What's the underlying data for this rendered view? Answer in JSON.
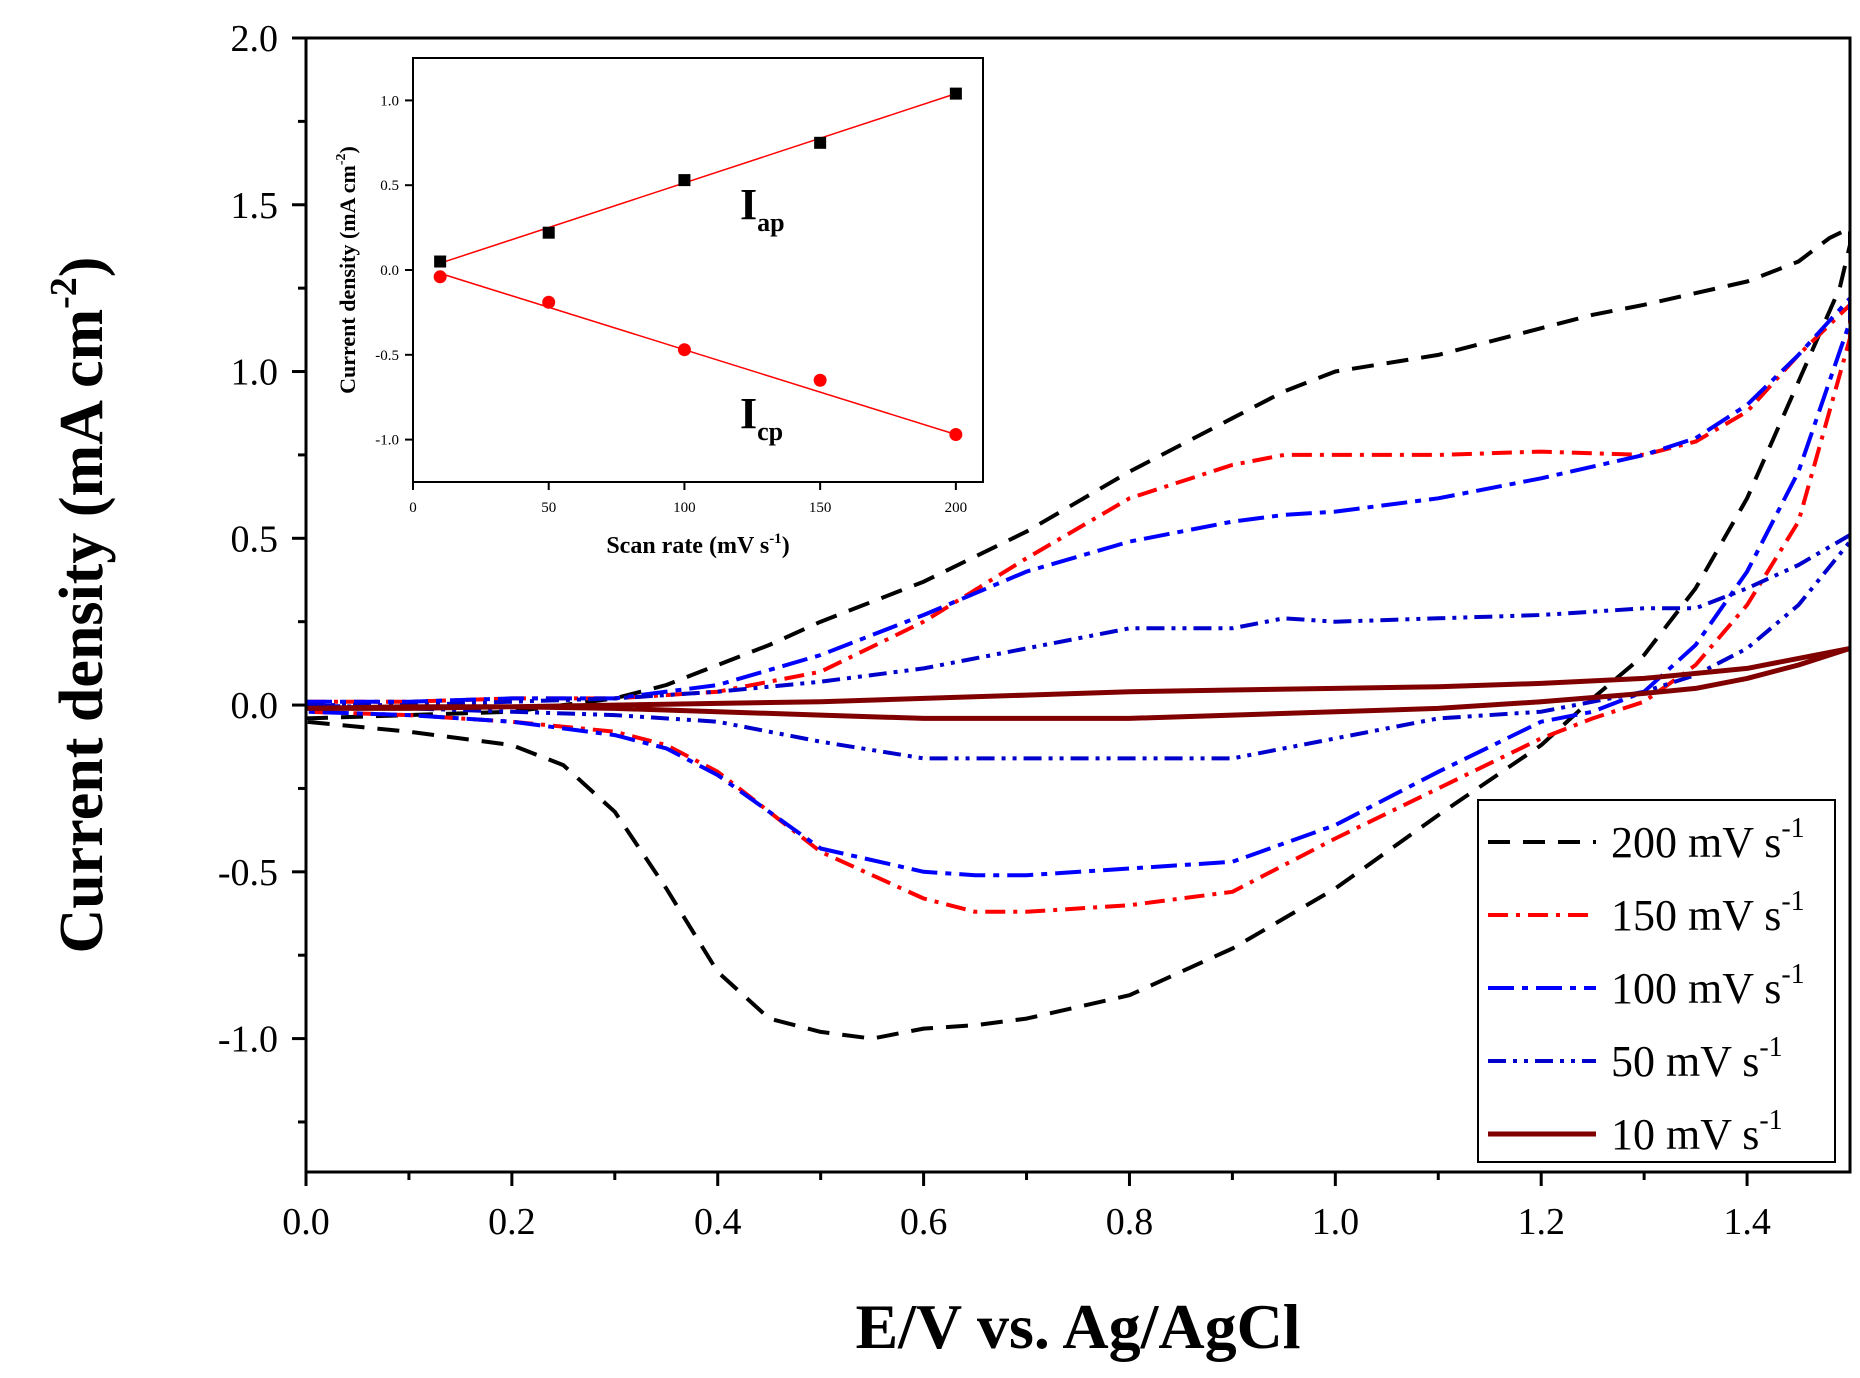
{
  "chart_data": [
    {
      "type": "line",
      "xlabel": "E/V vs. Ag/AgCl",
      "ylabel_main": "Current density (mA cm",
      "ylabel_sup": "-2",
      "ylabel_close": ")",
      "xlim": [
        0.0,
        1.5
      ],
      "ylim": [
        -1.4,
        2.0
      ],
      "xticks": [
        "0.0",
        "0.2",
        "0.4",
        "0.6",
        "0.8",
        "1.0",
        "1.2",
        "1.4"
      ],
      "yticks": [
        "-1.0",
        "-0.5",
        "0.0",
        "0.5",
        "1.0",
        "1.5",
        "2.0"
      ],
      "grid": false,
      "legend_position": "bottom-right",
      "legend": [
        {
          "text": "200 mV s",
          "sup": "-1"
        },
        {
          "text": "150 mV s",
          "sup": "-1"
        },
        {
          "text": "100 mV s",
          "sup": "-1"
        },
        {
          "text": "50 mV s",
          "sup": "-1"
        },
        {
          "text": "10 mV s",
          "sup": "-1"
        }
      ],
      "series": [
        {
          "name": "200 mV s-1",
          "color": "#000000",
          "dash": "dashed",
          "x": [
            0.0,
            0.1,
            0.2,
            0.3,
            0.35,
            0.4,
            0.45,
            0.5,
            0.55,
            0.6,
            0.7,
            0.8,
            0.9,
            0.95,
            1.0,
            1.1,
            1.2,
            1.25,
            1.3,
            1.4,
            1.45,
            1.48,
            1.5,
            1.5,
            1.49,
            1.4,
            1.35,
            1.3,
            1.25,
            1.2,
            1.1,
            1.0,
            0.9,
            0.8,
            0.7,
            0.65,
            0.6,
            0.55,
            0.5,
            0.45,
            0.4,
            0.35,
            0.3,
            0.25,
            0.2,
            0.15,
            0.1,
            0.0
          ],
          "y": [
            -0.04,
            -0.03,
            -0.02,
            0.02,
            0.06,
            0.12,
            0.18,
            0.25,
            0.31,
            0.37,
            0.52,
            0.7,
            0.86,
            0.94,
            1.0,
            1.05,
            1.13,
            1.17,
            1.2,
            1.27,
            1.33,
            1.4,
            1.43,
            1.38,
            1.25,
            0.62,
            0.35,
            0.15,
            0.02,
            -0.12,
            -0.33,
            -0.55,
            -0.73,
            -0.87,
            -0.94,
            -0.96,
            -0.97,
            -1.0,
            -0.98,
            -0.94,
            -0.8,
            -0.55,
            -0.32,
            -0.18,
            -0.12,
            -0.1,
            -0.08,
            -0.05
          ]
        },
        {
          "name": "150 mV s-1",
          "color": "#ff0000",
          "dash": "dashdot",
          "x": [
            0.0,
            0.1,
            0.2,
            0.3,
            0.4,
            0.5,
            0.6,
            0.7,
            0.8,
            0.9,
            0.95,
            1.0,
            1.1,
            1.2,
            1.3,
            1.35,
            1.4,
            1.45,
            1.5,
            1.5,
            1.45,
            1.4,
            1.35,
            1.3,
            1.25,
            1.2,
            1.1,
            1.0,
            0.9,
            0.8,
            0.7,
            0.65,
            0.6,
            0.5,
            0.45,
            0.4,
            0.35,
            0.3,
            0.2,
            0.1,
            0.0
          ],
          "y": [
            0.01,
            0.01,
            0.02,
            0.02,
            0.04,
            0.1,
            0.25,
            0.44,
            0.62,
            0.72,
            0.75,
            0.75,
            0.75,
            0.76,
            0.75,
            0.79,
            0.88,
            1.05,
            1.2,
            1.1,
            0.55,
            0.3,
            0.12,
            0.01,
            -0.04,
            -0.1,
            -0.25,
            -0.4,
            -0.56,
            -0.6,
            -0.62,
            -0.62,
            -0.58,
            -0.44,
            -0.32,
            -0.2,
            -0.12,
            -0.08,
            -0.05,
            -0.03,
            -0.02
          ]
        },
        {
          "name": "100 mV s-1",
          "color": "#0000ff",
          "dash": "dashdot-long",
          "x": [
            0.0,
            0.1,
            0.2,
            0.3,
            0.4,
            0.5,
            0.6,
            0.7,
            0.8,
            0.9,
            0.95,
            1.0,
            1.1,
            1.2,
            1.3,
            1.35,
            1.4,
            1.45,
            1.5,
            1.5,
            1.45,
            1.4,
            1.35,
            1.3,
            1.25,
            1.2,
            1.1,
            1.0,
            0.9,
            0.8,
            0.7,
            0.65,
            0.6,
            0.5,
            0.45,
            0.4,
            0.35,
            0.3,
            0.2,
            0.1,
            0.0
          ],
          "y": [
            0.01,
            0.01,
            0.02,
            0.02,
            0.06,
            0.15,
            0.27,
            0.4,
            0.49,
            0.55,
            0.57,
            0.58,
            0.62,
            0.68,
            0.75,
            0.8,
            0.9,
            1.05,
            1.22,
            1.15,
            0.7,
            0.4,
            0.18,
            0.04,
            -0.02,
            -0.05,
            -0.2,
            -0.36,
            -0.47,
            -0.49,
            -0.51,
            -0.51,
            -0.5,
            -0.43,
            -0.32,
            -0.21,
            -0.13,
            -0.09,
            -0.05,
            -0.03,
            -0.02
          ]
        },
        {
          "name": "50 mV s-1",
          "color": "#0000cc",
          "dash": "dashdotdot",
          "x": [
            0.0,
            0.1,
            0.2,
            0.3,
            0.4,
            0.5,
            0.6,
            0.7,
            0.8,
            0.9,
            0.95,
            1.0,
            1.1,
            1.2,
            1.3,
            1.35,
            1.4,
            1.45,
            1.5,
            1.5,
            1.45,
            1.4,
            1.35,
            1.3,
            1.25,
            1.2,
            1.1,
            1.0,
            0.9,
            0.8,
            0.7,
            0.6,
            0.5,
            0.4,
            0.3,
            0.2,
            0.1,
            0.0
          ],
          "y": [
            0.0,
            0.0,
            0.01,
            0.02,
            0.04,
            0.07,
            0.11,
            0.17,
            0.23,
            0.23,
            0.26,
            0.25,
            0.26,
            0.27,
            0.29,
            0.29,
            0.35,
            0.42,
            0.51,
            0.49,
            0.3,
            0.17,
            0.09,
            0.04,
            0.01,
            -0.02,
            -0.04,
            -0.1,
            -0.16,
            -0.16,
            -0.16,
            -0.16,
            -0.11,
            -0.05,
            -0.03,
            -0.02,
            -0.01,
            0.0
          ]
        },
        {
          "name": "10 mV s-1",
          "color": "#800000",
          "dash": "solid",
          "x": [
            0.0,
            0.1,
            0.2,
            0.3,
            0.4,
            0.5,
            0.6,
            0.7,
            0.8,
            0.9,
            1.0,
            1.1,
            1.2,
            1.3,
            1.4,
            1.45,
            1.5,
            1.5,
            1.45,
            1.4,
            1.35,
            1.3,
            1.2,
            1.1,
            1.0,
            0.9,
            0.8,
            0.7,
            0.6,
            0.5,
            0.4,
            0.3,
            0.2,
            0.1,
            0.0
          ],
          "y": [
            -0.01,
            -0.01,
            -0.005,
            0.0,
            0.005,
            0.01,
            0.02,
            0.03,
            0.04,
            0.045,
            0.05,
            0.055,
            0.065,
            0.08,
            0.11,
            0.14,
            0.17,
            0.17,
            0.12,
            0.08,
            0.05,
            0.035,
            0.01,
            -0.01,
            -0.02,
            -0.03,
            -0.04,
            -0.04,
            -0.04,
            -0.03,
            -0.02,
            -0.01,
            -0.005,
            -0.005,
            -0.01
          ]
        }
      ]
    },
    {
      "type": "scatter",
      "xlabel": "Scan rate (mV s",
      "xlabel_sup": "-1",
      "xlabel_close": ")",
      "ylabel": "Current density (mA cm",
      "ylabel_sup": "-2",
      "ylabel_close": ")",
      "xlim": [
        0,
        210
      ],
      "ylim": [
        -1.25,
        1.25
      ],
      "xticks": [
        "0",
        "50",
        "100",
        "150",
        "200"
      ],
      "yticks": [
        "-1.0",
        "-0.5",
        "0.0",
        "0.5",
        "1.0"
      ],
      "annotations": [
        {
          "text": "I",
          "sub": "ap"
        },
        {
          "text": "I",
          "sub": "cp"
        }
      ],
      "series": [
        {
          "name": "Iap",
          "color": "#000000",
          "marker": "square",
          "x": [
            10,
            50,
            100,
            150,
            200
          ],
          "y": [
            0.05,
            0.22,
            0.53,
            0.75,
            1.04
          ],
          "fit": [
            [
              10,
              0.04
            ],
            [
              200,
              1.04
            ]
          ]
        },
        {
          "name": "Icp",
          "color": "#ff0000",
          "marker": "circle",
          "x": [
            10,
            50,
            100,
            150,
            200
          ],
          "y": [
            -0.04,
            -0.19,
            -0.47,
            -0.65,
            -0.97
          ],
          "fit": [
            [
              10,
              -0.02
            ],
            [
              200,
              -0.97
            ]
          ]
        }
      ]
    }
  ]
}
